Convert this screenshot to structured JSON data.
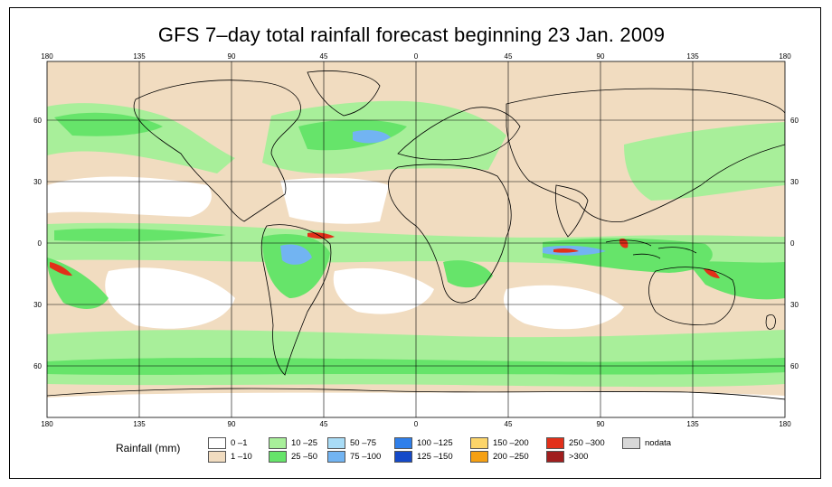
{
  "title": "GFS 7–day total rainfall forecast beginning 23 Jan. 2009",
  "axes": {
    "top_lon": [
      "180",
      "135",
      "90",
      "45",
      "0",
      "45",
      "90",
      "135",
      "180"
    ],
    "bottom_lon": [
      "180",
      "135",
      "90",
      "45",
      "0",
      "45",
      "90",
      "135",
      "180"
    ],
    "left_lat": [
      "60",
      "30",
      "0",
      "30",
      "60"
    ],
    "right_lat": [
      "60",
      "30",
      "0",
      "30",
      "60"
    ]
  },
  "legend": {
    "title": "Rainfall (mm)",
    "items": [
      {
        "label": "0 –1",
        "color": "#ffffff"
      },
      {
        "label": "1 –10",
        "color": "#f1dcc0"
      },
      {
        "label": "10 –25",
        "color": "#a8ef9a"
      },
      {
        "label": "25 –50",
        "color": "#66e46a"
      },
      {
        "label": "50 –75",
        "color": "#a9dcf6"
      },
      {
        "label": "75 –100",
        "color": "#72b4f2"
      },
      {
        "label": "100 –125",
        "color": "#2f7fea"
      },
      {
        "label": "125 –150",
        "color": "#1449c8"
      },
      {
        "label": "150 –200",
        "color": "#fcd56a"
      },
      {
        "label": "200 –250",
        "color": "#f5a013"
      },
      {
        "label": "250 –300",
        "color": "#e2301a"
      },
      {
        "label": ">300",
        "color": "#a01e1e"
      },
      {
        "label": "nodata",
        "color": "#d8d8d8"
      }
    ]
  },
  "colors": {
    "ocean_dry": "#f1dcc0",
    "light_rain": "#a8ef9a",
    "moderate_rain": "#66e46a",
    "heavy_blue": "#72b4f2",
    "extreme_red": "#e2301a"
  }
}
